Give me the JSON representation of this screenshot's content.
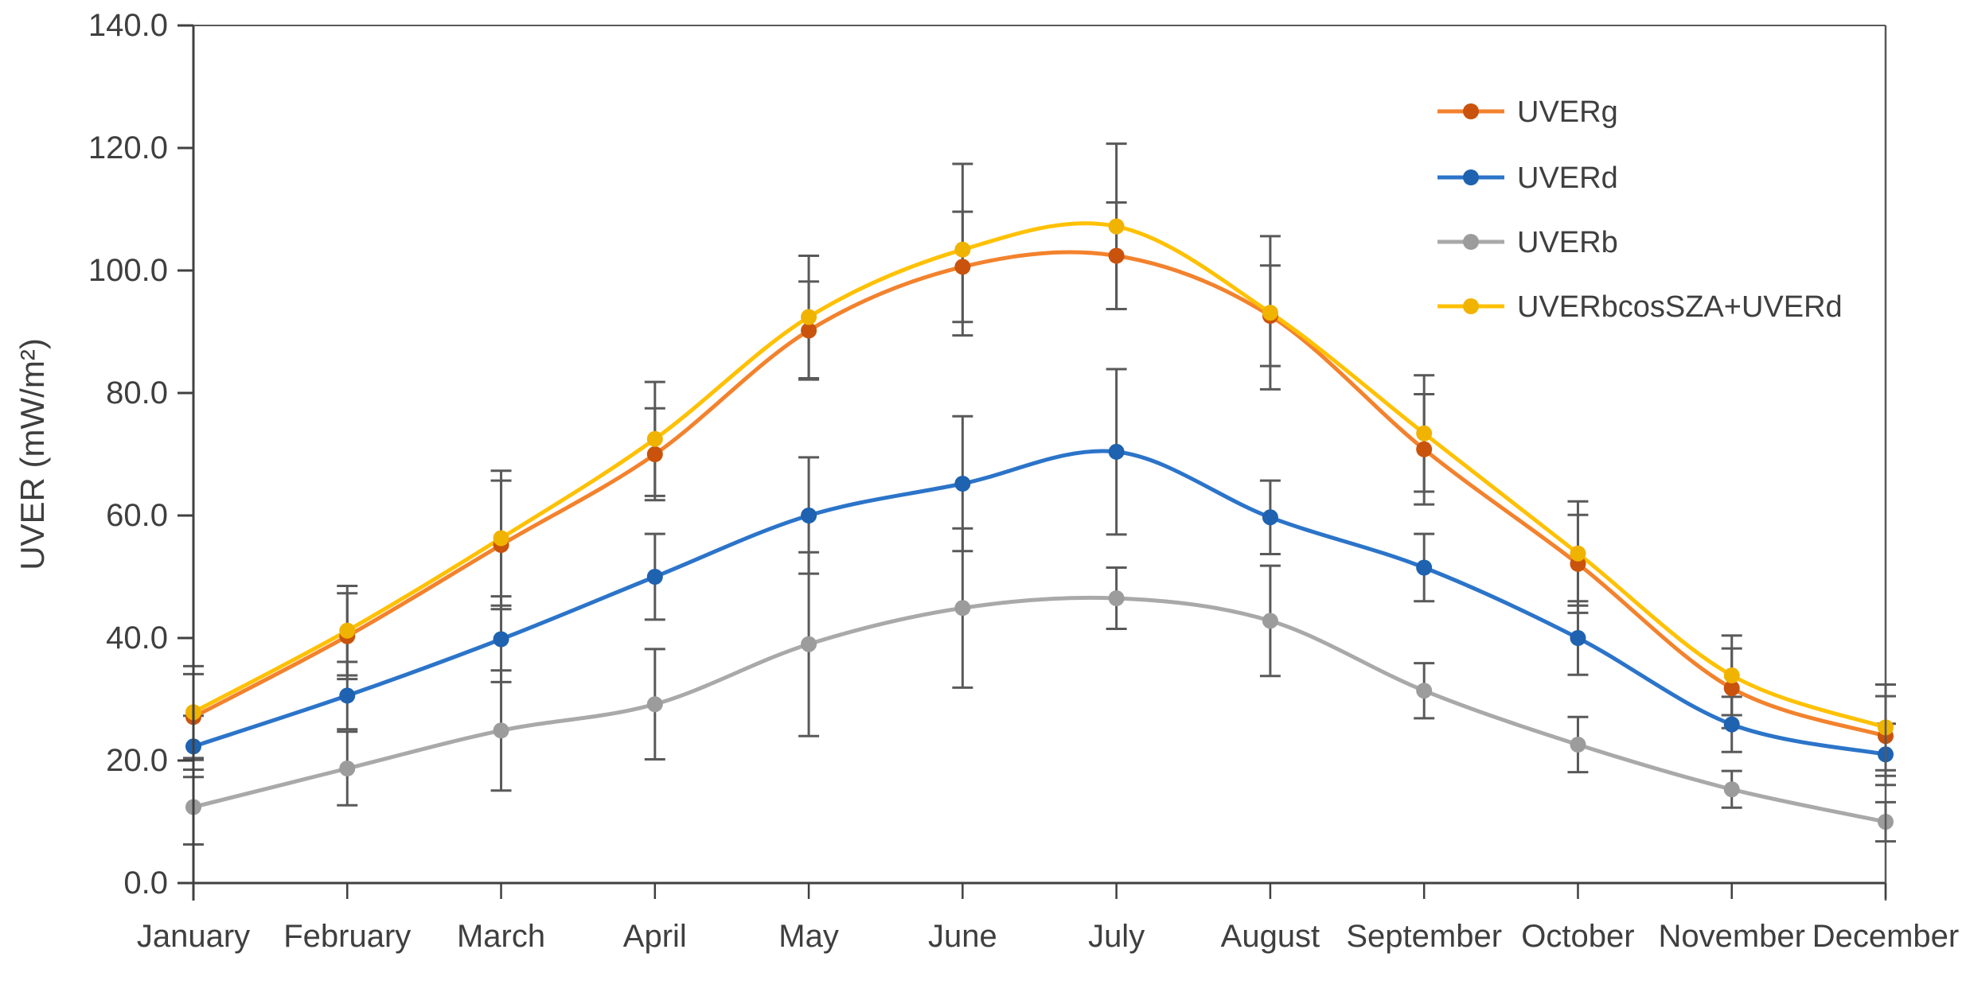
{
  "chart_data": {
    "type": "line",
    "title": "",
    "categories": [
      "January",
      "February",
      "March",
      "April",
      "May",
      "June",
      "July",
      "August",
      "September",
      "October",
      "November",
      "December"
    ],
    "y_axis": {
      "label": "UVER (mW/m²)",
      "min": 0,
      "max": 140,
      "step": 20,
      "tick_labels": [
        "0.0",
        "20.0",
        "40.0",
        "60.0",
        "80.0",
        "100.0",
        "120.0",
        "140.0"
      ]
    },
    "x_axis": {
      "label": ""
    },
    "grid": false,
    "legend_position": "top-right-inside",
    "smoothed_lines": true,
    "series": [
      {
        "name": "UVERg",
        "line_color": "#F3822D",
        "marker_color": "#C9530C",
        "values": [
          27.1,
          40.3,
          55.2,
          70.0,
          90.2,
          100.6,
          102.4,
          92.6,
          70.8,
          52.1,
          31.8,
          24.0
        ],
        "errors": [
          7.0,
          7.0,
          10.5,
          7.5,
          8.0,
          9.0,
          8.7,
          8.2,
          9.0,
          8.0,
          6.5,
          6.5
        ]
      },
      {
        "name": "UVERd",
        "line_color": "#2B74C9",
        "marker_color": "#1E62B0",
        "values": [
          22.3,
          30.6,
          39.8,
          50.0,
          60.0,
          65.2,
          70.4,
          59.7,
          51.5,
          40.0,
          25.9,
          21.0
        ],
        "errors": [
          5.0,
          5.5,
          7.0,
          7.0,
          9.5,
          11.0,
          13.5,
          6.0,
          5.5,
          6.0,
          4.5,
          5.0
        ]
      },
      {
        "name": "UVERb",
        "line_color": "#A9A9A9",
        "marker_color": "#9C9C9C",
        "values": [
          12.4,
          18.7,
          24.9,
          29.2,
          39.0,
          44.9,
          46.5,
          42.8,
          31.4,
          22.6,
          15.3,
          10.0
        ],
        "errors": [
          6.1,
          6.0,
          9.8,
          9.0,
          15.0,
          13.0,
          5.0,
          9.0,
          4.5,
          4.5,
          3.0,
          3.2
        ]
      },
      {
        "name": "UVERbcosSZA+UVERd",
        "line_color": "#FFC103",
        "marker_color": "#F0B300",
        "values": [
          27.9,
          41.2,
          56.3,
          72.5,
          92.4,
          103.4,
          107.2,
          93.1,
          73.4,
          53.8,
          33.9,
          25.4
        ],
        "errors": [
          7.5,
          7.3,
          11.0,
          9.3,
          10.0,
          14.0,
          13.5,
          12.5,
          9.5,
          8.5,
          6.5,
          7.0
        ]
      }
    ],
    "error_bar_color": "#595959",
    "axis_color": "#404040",
    "border_color": "#595959",
    "text_color": "#3F3F3F",
    "background_color": "#FFFFFF"
  }
}
